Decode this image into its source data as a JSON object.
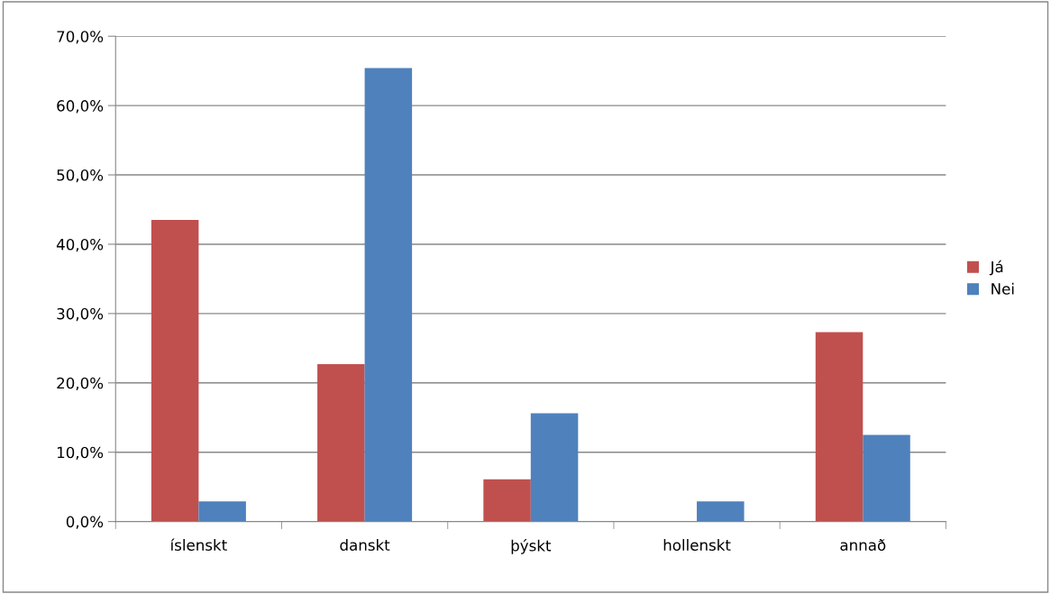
{
  "chart_data": {
    "type": "bar",
    "categories": [
      "íslenskt",
      "danskt",
      "þýskt",
      "hollenskt",
      "annað"
    ],
    "series": [
      {
        "name": "Já",
        "color": "#c0504d",
        "values": [
          43.5,
          22.7,
          6.1,
          0,
          27.3
        ]
      },
      {
        "name": "Nei",
        "color": "#4f81bd",
        "values": [
          2.9,
          65.4,
          15.6,
          2.9,
          12.5
        ]
      }
    ],
    "ylim": [
      0,
      70
    ],
    "yticks": [
      {
        "value": 0,
        "label": "0,0%"
      },
      {
        "value": 10,
        "label": "10,0%"
      },
      {
        "value": 20,
        "label": "20,0%"
      },
      {
        "value": 30,
        "label": "30,0%"
      },
      {
        "value": 40,
        "label": "40,0%"
      },
      {
        "value": 50,
        "label": "50,0%"
      },
      {
        "value": 60,
        "label": "60,0%"
      },
      {
        "value": 70,
        "label": "70,0%"
      }
    ],
    "grid": "y",
    "legend": "right"
  }
}
